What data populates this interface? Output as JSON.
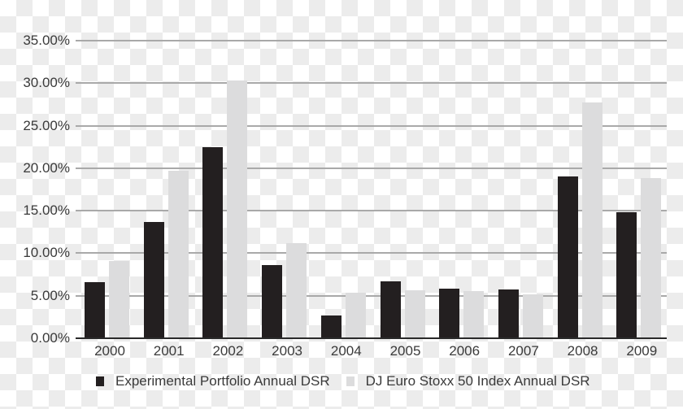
{
  "chart_data": {
    "type": "bar",
    "title": "",
    "xlabel": "",
    "ylabel": "",
    "ylim": [
      0,
      35
    ],
    "y_ticks": [
      "0.00%",
      "5.00%",
      "10.00%",
      "15.00%",
      "20.00%",
      "25.00%",
      "30.00%",
      "35.00%"
    ],
    "y_tick_values": [
      0,
      5,
      10,
      15,
      20,
      25,
      30,
      35
    ],
    "grid": true,
    "legend_position": "bottom",
    "categories": [
      "2000",
      "2001",
      "2002",
      "2003",
      "2004",
      "2005",
      "2006",
      "2007",
      "2008",
      "2009"
    ],
    "series": [
      {
        "name": "Experimental Portfolio Annual DSR",
        "color": "#231f20",
        "values": [
          6.6,
          13.7,
          22.5,
          8.6,
          2.7,
          6.7,
          5.8,
          5.7,
          19.0,
          14.8
        ]
      },
      {
        "name": "DJ Euro Stoxx 50 Index Annual DSR",
        "color": "#dcdcdd",
        "values": [
          9.1,
          19.7,
          30.3,
          11.2,
          5.4,
          5.6,
          5.5,
          5.2,
          27.7,
          18.8
        ]
      }
    ]
  }
}
